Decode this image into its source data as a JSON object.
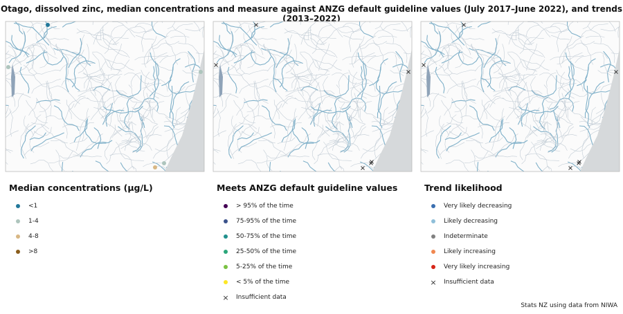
{
  "title": "Otago, dissolved zinc, median concentrations and measure against ANZG default guideline values (July 2017–June 2022), and trends (2013–2022)",
  "panels": [
    {
      "legend_title": "Median concentrations (µg/L)",
      "items": [
        {
          "label": "<1",
          "color": "#22789a"
        },
        {
          "label": "1-4",
          "color": "#aec5bd"
        },
        {
          "label": "4-8",
          "color": "#d8b784"
        },
        {
          "label": ">8",
          "color": "#8a5d1c"
        }
      ]
    },
    {
      "legend_title": "Meets ANZG default guideline values",
      "items": [
        {
          "label": "> 95% of the time",
          "color": "#440154"
        },
        {
          "label": "75-95% of the time",
          "color": "#3b528b"
        },
        {
          "label": "50-75% of the time",
          "color": "#21908d"
        },
        {
          "label": "25-50% of the time",
          "color": "#2ba67a"
        },
        {
          "label": "5-25% of the time",
          "color": "#7ac143"
        },
        {
          "label": "< 5% of the time",
          "color": "#fde725"
        },
        {
          "label": "Insufficient data",
          "marker": "x"
        }
      ]
    },
    {
      "legend_title": "Trend likelihood",
      "items": [
        {
          "label": "Very likely decreasing",
          "color": "#3b6fb0"
        },
        {
          "label": "Likely decreasing",
          "color": "#8fbfd9"
        },
        {
          "label": "Indeterminate",
          "color": "#808080"
        },
        {
          "label": "Likely increasing",
          "color": "#f08850"
        },
        {
          "label": "Very likely increasing",
          "color": "#d62518"
        },
        {
          "label": "Insufficient data",
          "marker": "x"
        }
      ]
    }
  ],
  "source": "Stats NZ using data from NIWA"
}
